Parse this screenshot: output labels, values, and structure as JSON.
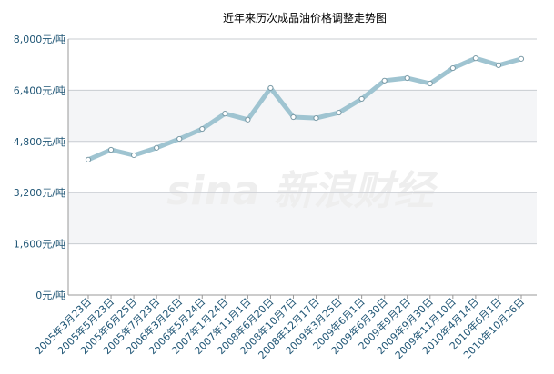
{
  "chart_data": {
    "type": "line",
    "title": "近年来历次成品油价格调整走势图",
    "watermark": "sina 新浪财经",
    "categories": [
      "2005年3月23日",
      "2005年5月23日",
      "2005年6月25日",
      "2005年7月23日",
      "2006年3月26日",
      "2006年5月24日",
      "2007年1月24日",
      "2007年11月1日",
      "2008年6月20日",
      "2008年10月7日",
      "2008年12月17日",
      "2009年3月25日",
      "2009年6月1日",
      "2009年6月30日",
      "2009年9月2日",
      "2009年9月30日",
      "2009年11月10日",
      "2010年4月14日",
      "2010年6月1日",
      "2010年10月26日"
    ],
    "values": [
      4230,
      4540,
      4370,
      4600,
      4880,
      5190,
      5670,
      5480,
      6470,
      5560,
      5530,
      5700,
      6130,
      6700,
      6780,
      6610,
      7090,
      7400,
      7180,
      7380
    ],
    "color": "#9fc4d1",
    "ylim": [
      0,
      8000
    ],
    "yticks": [
      {
        "value": 0,
        "label": "0元/吨"
      },
      {
        "value": 1600,
        "label": "1,600元/吨"
      },
      {
        "value": 3200,
        "label": "3,200元/吨"
      },
      {
        "value": 4800,
        "label": "4,800元/吨"
      },
      {
        "value": 6400,
        "label": "6,400元/吨"
      },
      {
        "value": 8000,
        "label": "8,000元/吨"
      }
    ],
    "grid": true
  }
}
